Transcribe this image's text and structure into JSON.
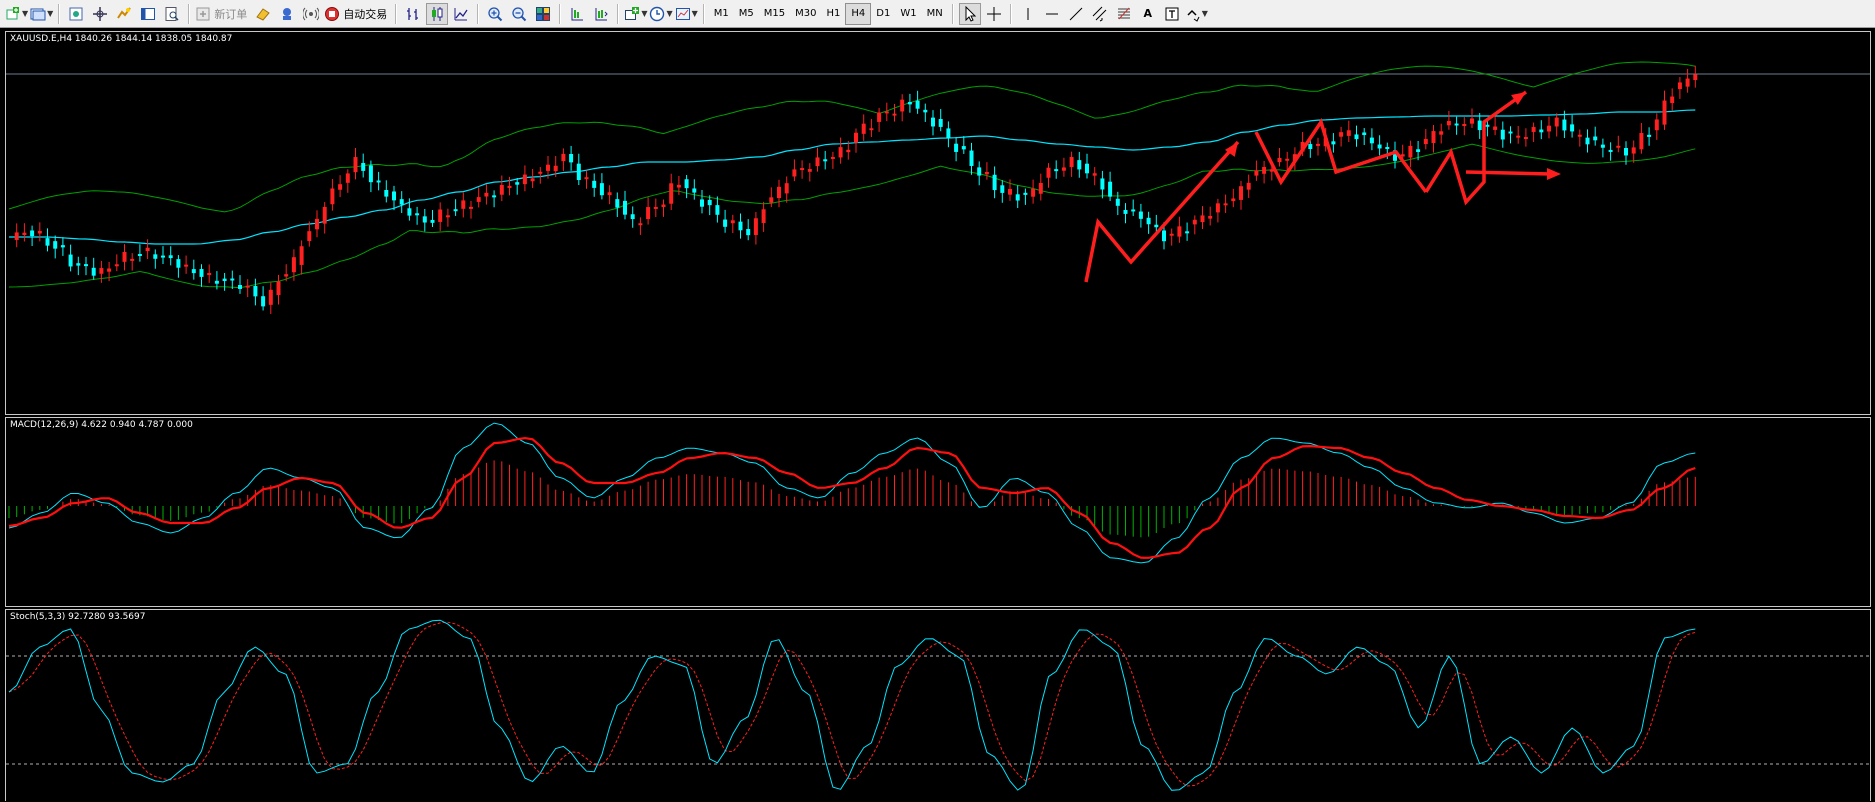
{
  "toolbar": {
    "new_order_label": "新订单",
    "autotrade_label": "自动交易",
    "timeframes": [
      "M1",
      "M5",
      "M15",
      "M30",
      "H1",
      "H4",
      "D1",
      "W1",
      "MN"
    ],
    "active_timeframe": "H4",
    "text_tool_label": "A"
  },
  "chart": {
    "symbol_info": "XAUUSD.E,H4  1840.26 1844.14 1838.05 1840.87",
    "bull_color": "#ff2020",
    "bear_color": "#00ffff",
    "ma_color": "#00e5ff",
    "band_color": "#00a000",
    "annotation_color": "#ff1e1e"
  },
  "macd": {
    "label": "MACD(12,26,9) 4.622 0.940 4.787 0.000",
    "main_color": "#00e5ff",
    "signal_color": "#ff1010"
  },
  "stoch": {
    "label": "Stoch(5,3,3) 92.7280 93.5697",
    "main_color": "#00e5ff",
    "signal_color": "#ff2020",
    "levels": [
      80,
      20
    ]
  }
}
